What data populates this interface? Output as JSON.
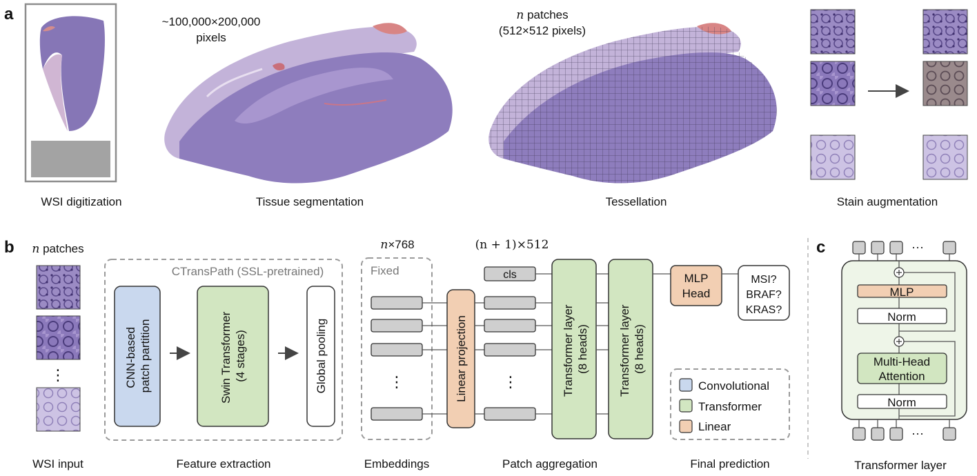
{
  "panel_labels": {
    "a": "a",
    "b": "b",
    "c": "c"
  },
  "panel_a": {
    "captions": {
      "wsi_digitization": "WSI digitization",
      "tissue_segmentation": "Tissue segmentation",
      "tessellation": "Tessellation",
      "stain_augmentation": "Stain augmentation"
    },
    "size_note": {
      "line1": "~100,000×200,000",
      "line2": "pixels"
    },
    "patch_note": {
      "n": "n",
      "line1_rest": " patches",
      "line2": "(512×512 pixels)"
    }
  },
  "panel_b": {
    "n_patches": {
      "n": "n",
      "rest": " patches"
    },
    "ctranspath_title": "CTransPath (SSL-pretrained)",
    "cnn_block": {
      "line1": "CNN-based",
      "line2": "patch partition"
    },
    "swin_block": {
      "line1": "Swin Transformer",
      "line2": "(4 stages)"
    },
    "pool_block": "Global pooling",
    "embed_dim": {
      "n": "n",
      "rest": "×768"
    },
    "fixed_label": "Fixed",
    "agg_dim": "(n + 1)×512",
    "cls_label": "cls",
    "linear_projection": "Linear projection",
    "transformer_layer_1": {
      "line1": "Transformer layer",
      "line2": "(8 heads)"
    },
    "transformer_layer_2": {
      "line1": "Transformer layer",
      "line2": "(8 heads)"
    },
    "mlp_head": {
      "line1": "MLP",
      "line2": "Head"
    },
    "outputs": [
      "MSI?",
      "BRAF?",
      "KRAS?"
    ],
    "ellipsis": "⋮",
    "legend": [
      {
        "label": "Convolutional",
        "color": "#c9d8ee"
      },
      {
        "label": "Transformer",
        "color": "#d2e6c1"
      },
      {
        "label": "Linear",
        "color": "#f2cfb3"
      }
    ],
    "captions": {
      "wsi_input": "WSI input",
      "feature_extraction": "Feature extraction",
      "embeddings": "Embeddings",
      "patch_aggregation": "Patch aggregation",
      "final_prediction": "Final prediction"
    }
  },
  "panel_c": {
    "mlp": "MLP",
    "norm_top": "Norm",
    "mha": {
      "line1": "Multi-Head",
      "line2": "Attention"
    },
    "norm_bottom": "Norm",
    "dots": "···",
    "caption": "Transformer layer"
  },
  "colors": {
    "conv": "#c9d8ee",
    "transformer": "#d2e6c1",
    "linear": "#f2cfb3",
    "token": "#cfcfcf",
    "tissue": "#8a78b6",
    "tissue_light": "#b8a9d6",
    "blood": "#d87f7f",
    "dashed": "#9a9a9a"
  }
}
